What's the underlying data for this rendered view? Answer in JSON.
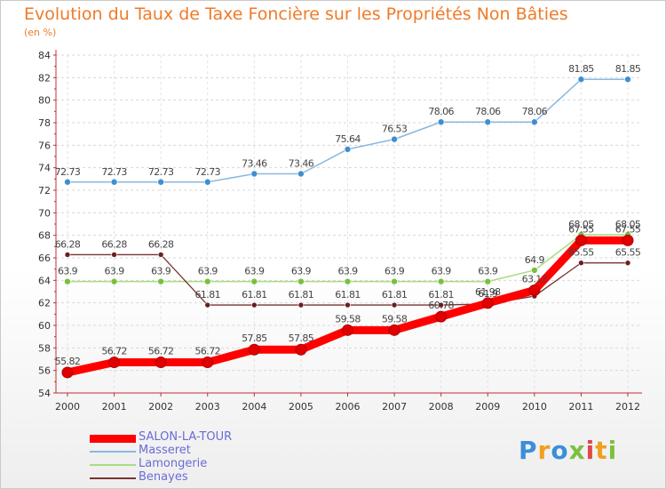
{
  "header": {
    "title": "Evolution du Taux de Taxe Foncière sur les Propriétés Non Bâties",
    "subtitle": "(en %)"
  },
  "logo": {
    "text": "Proxiti",
    "colors": [
      "#3a8fd8",
      "#f0a020",
      "#7cc040",
      "#e04848"
    ]
  },
  "chart_data": {
    "type": "line",
    "title": "Evolution du Taux de Taxe Foncière sur les Propriétés Non Bâties",
    "ylabel": "(en %)",
    "xlabel": "",
    "x": [
      "2000",
      "2001",
      "2002",
      "2003",
      "2004",
      "2005",
      "2006",
      "2007",
      "2008",
      "2009",
      "2010",
      "2011",
      "2012"
    ],
    "ylim": [
      54,
      84
    ],
    "yticks": [
      54,
      56,
      58,
      60,
      62,
      64,
      66,
      68,
      70,
      72,
      74,
      76,
      78,
      80,
      82,
      84
    ],
    "grid": "horizontal dashed",
    "legend_position": "bottom-left",
    "series": [
      {
        "name": "SALON-LA-TOUR",
        "color": "#ff0000",
        "marker": "#e00000",
        "values": [
          55.82,
          56.72,
          56.72,
          56.72,
          57.85,
          57.85,
          59.58,
          59.58,
          60.78,
          61.98,
          63.12,
          67.55,
          67.55
        ],
        "labels": [
          "55.82",
          "56.72",
          "56.72",
          "56.72",
          "57.85",
          "57.85",
          "59.58",
          "59.58",
          "60.78",
          "61.98",
          "63.12",
          "67.55",
          "67.55"
        ]
      },
      {
        "name": "Masseret",
        "color": "#8ab8e0",
        "marker": "#3f8fd0",
        "values": [
          72.73,
          72.73,
          72.73,
          72.73,
          73.46,
          73.46,
          75.64,
          76.53,
          78.06,
          78.06,
          78.06,
          81.85,
          81.85
        ],
        "labels": [
          "72.73",
          "72.73",
          "72.73",
          "72.73",
          "73.46",
          "73.46",
          "75.64",
          "76.53",
          "78.06",
          "78.06",
          "78.06",
          "81.85",
          "81.85"
        ]
      },
      {
        "name": "Lamongerie",
        "color": "#a8dc80",
        "marker": "#78c040",
        "values": [
          63.9,
          63.9,
          63.9,
          63.9,
          63.9,
          63.9,
          63.9,
          63.9,
          63.9,
          63.9,
          64.9,
          68.05,
          68.05
        ],
        "labels": [
          "63.9",
          "63.9",
          "63.9",
          "63.9",
          "63.9",
          "63.9",
          "63.9",
          "63.9",
          "63.9",
          "63.9",
          "64.9",
          "68.05",
          "68.05"
        ]
      },
      {
        "name": "Benayes",
        "color": "#7a3434",
        "marker": "#6a1f1f",
        "values": [
          66.28,
          66.28,
          66.28,
          61.81,
          61.81,
          61.81,
          61.81,
          61.81,
          61.81,
          61.9,
          62.6,
          65.55,
          65.55
        ],
        "labels": [
          "66.28",
          "66.28",
          "66.28",
          "61.81",
          "61.81",
          "61.81",
          "61.81",
          "61.81",
          "61.81",
          "61.9",
          "",
          "65.55",
          "65.55"
        ]
      }
    ]
  }
}
